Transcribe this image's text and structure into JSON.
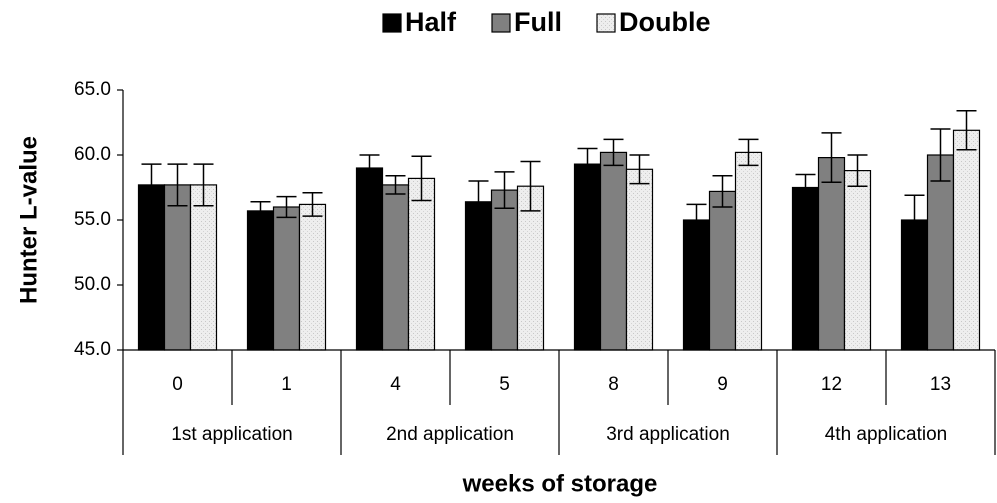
{
  "chart_data": {
    "type": "bar",
    "y_label": "Hunter L-value",
    "x_label": "weeks of storage",
    "categories": [
      "0",
      "1",
      "4",
      "5",
      "8",
      "9",
      "12",
      "13"
    ],
    "groups": [
      "1st application",
      "2nd application",
      "3rd application",
      "4th application"
    ],
    "series": [
      {
        "name": "Half",
        "color": "#000000",
        "values": [
          57.7,
          55.7,
          59.0,
          56.4,
          59.3,
          55.0,
          57.5,
          55.0
        ],
        "errors": [
          1.6,
          0.7,
          1.0,
          1.6,
          1.2,
          1.2,
          1.0,
          1.9
        ]
      },
      {
        "name": "Full",
        "color": "#808080",
        "values": [
          57.7,
          56.0,
          57.7,
          57.3,
          60.2,
          57.2,
          59.8,
          60.0
        ],
        "errors": [
          1.6,
          0.8,
          0.7,
          1.4,
          1.0,
          1.2,
          1.9,
          2.0
        ]
      },
      {
        "name": "Double",
        "color": "#eeeeee",
        "values": [
          57.7,
          56.2,
          58.2,
          57.6,
          58.9,
          60.2,
          58.8,
          61.9
        ],
        "errors": [
          1.6,
          0.9,
          1.7,
          1.9,
          1.1,
          1.0,
          1.2,
          1.5
        ]
      }
    ],
    "ylim": [
      45,
      65
    ],
    "yticks": [
      {
        "value": 45,
        "label": "45.0"
      },
      {
        "value": 50,
        "label": "50.0"
      },
      {
        "value": 55,
        "label": "55.0"
      },
      {
        "value": 60,
        "label": "60.0"
      },
      {
        "value": 65,
        "label": "65.0"
      }
    ],
    "legend": "top"
  }
}
